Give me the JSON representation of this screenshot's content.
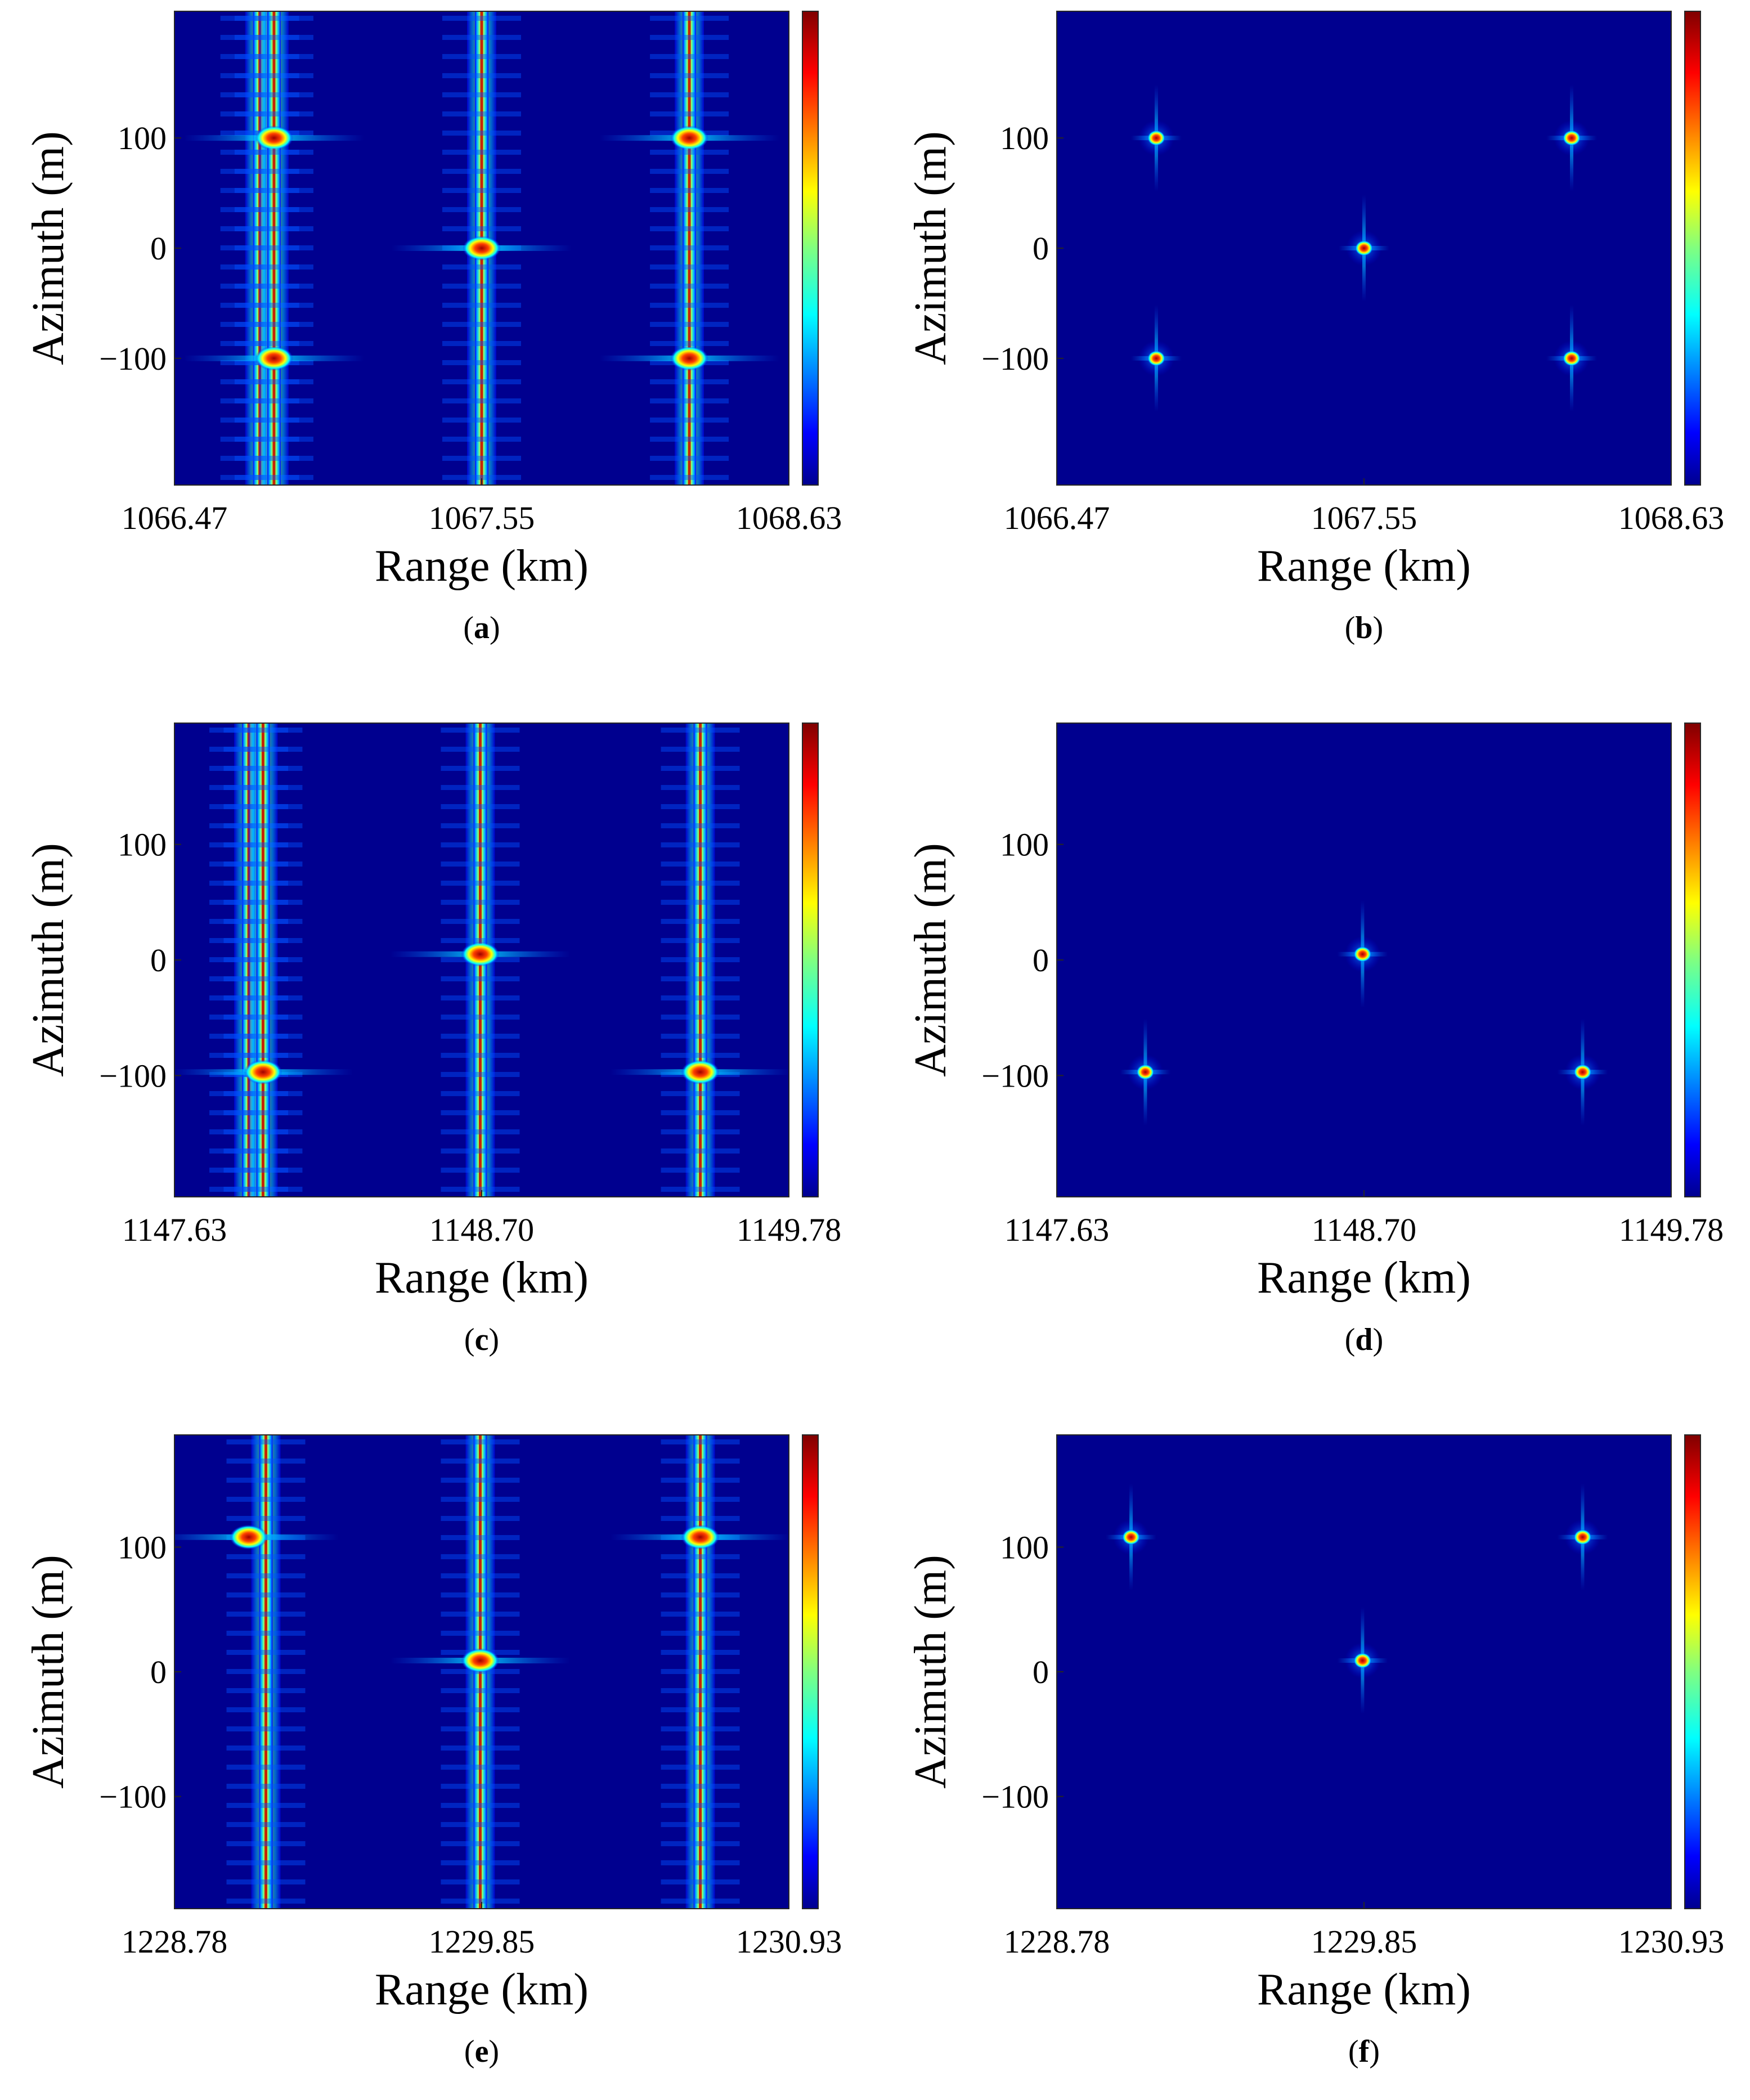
{
  "colors": {
    "background": "#00008f",
    "colormap": [
      "#00008f",
      "#0000ff",
      "#0080ff",
      "#00ffff",
      "#80ff80",
      "#ffff00",
      "#ff8000",
      "#ff0000",
      "#800000"
    ]
  },
  "chart_data": [
    {
      "type": "heatmap",
      "caption": "a",
      "xlabel": "Range (km)",
      "ylabel": "Azimuth (m)",
      "xticks": [
        "1066.47",
        "1067.55",
        "1068.63"
      ],
      "yticks": [
        "100",
        "0",
        "−100"
      ],
      "xlim": [
        1066.47,
        1068.63
      ],
      "ylim": [
        -215,
        215
      ],
      "colorbar": true,
      "unfocused": true,
      "targets": [
        {
          "x": 1066.82,
          "y": 100
        },
        {
          "x": 1066.82,
          "y": -100
        },
        {
          "x": 1067.55,
          "y": 0
        },
        {
          "x": 1068.28,
          "y": 100
        },
        {
          "x": 1068.28,
          "y": -100
        }
      ],
      "stripes": [
        1066.77,
        1066.82,
        1067.55,
        1068.28
      ]
    },
    {
      "type": "heatmap",
      "caption": "b",
      "xlabel": "Range (km)",
      "ylabel": "Azimuth (m)",
      "xticks": [
        "1066.47",
        "1067.55",
        "1068.63"
      ],
      "yticks": [
        "100",
        "0",
        "−100"
      ],
      "xlim": [
        1066.47,
        1068.63
      ],
      "ylim": [
        -215,
        215
      ],
      "colorbar": true,
      "unfocused": false,
      "targets": [
        {
          "x": 1066.82,
          "y": 100
        },
        {
          "x": 1066.82,
          "y": -100
        },
        {
          "x": 1067.55,
          "y": 0
        },
        {
          "x": 1068.28,
          "y": 100
        },
        {
          "x": 1068.28,
          "y": -100
        }
      ],
      "stripes": []
    },
    {
      "type": "heatmap",
      "caption": "c",
      "xlabel": "Range (km)",
      "ylabel": "Azimuth (m)",
      "xticks": [
        "1147.63",
        "1148.70",
        "1149.78"
      ],
      "yticks": [
        "100",
        "0",
        "−100"
      ],
      "xlim": [
        1147.63,
        1149.78
      ],
      "ylim": [
        -205,
        205
      ],
      "colorbar": true,
      "unfocused": true,
      "targets": [
        {
          "x": 1147.94,
          "y": -97
        },
        {
          "x": 1148.7,
          "y": 5
        },
        {
          "x": 1149.47,
          "y": -97
        }
      ],
      "stripes": [
        1147.89,
        1147.94,
        1148.7,
        1149.47
      ]
    },
    {
      "type": "heatmap",
      "caption": "d",
      "xlabel": "Range (km)",
      "ylabel": "Azimuth (m)",
      "xticks": [
        "1147.63",
        "1148.70",
        "1149.78"
      ],
      "yticks": [
        "100",
        "0",
        "−100"
      ],
      "xlim": [
        1147.63,
        1149.78
      ],
      "ylim": [
        -205,
        205
      ],
      "colorbar": true,
      "unfocused": false,
      "targets": [
        {
          "x": 1147.94,
          "y": -97
        },
        {
          "x": 1148.7,
          "y": 5
        },
        {
          "x": 1149.47,
          "y": -97
        }
      ],
      "stripes": []
    },
    {
      "type": "heatmap",
      "caption": "e",
      "xlabel": "Range (km)",
      "ylabel": "Azimuth (m)",
      "xticks": [
        "1228.78",
        "1229.85",
        "1230.93"
      ],
      "yticks": [
        "100",
        "0",
        "−100"
      ],
      "xlim": [
        1228.78,
        1230.93
      ],
      "ylim": [
        -190,
        190
      ],
      "colorbar": true,
      "unfocused": true,
      "targets": [
        {
          "x": 1229.04,
          "y": 108
        },
        {
          "x": 1229.85,
          "y": 9
        },
        {
          "x": 1230.62,
          "y": 108
        }
      ],
      "stripes": [
        1229.1,
        1229.85,
        1230.62
      ]
    },
    {
      "type": "heatmap",
      "caption": "f",
      "xlabel": "Range (km)",
      "ylabel": "Azimuth (m)",
      "xticks": [
        "1228.78",
        "1229.85",
        "1230.93"
      ],
      "yticks": [
        "100",
        "0",
        "−100"
      ],
      "xlim": [
        1228.78,
        1230.93
      ],
      "ylim": [
        -190,
        190
      ],
      "colorbar": true,
      "unfocused": false,
      "targets": [
        {
          "x": 1229.04,
          "y": 108
        },
        {
          "x": 1229.85,
          "y": 9
        },
        {
          "x": 1230.62,
          "y": 108
        }
      ],
      "stripes": []
    }
  ]
}
